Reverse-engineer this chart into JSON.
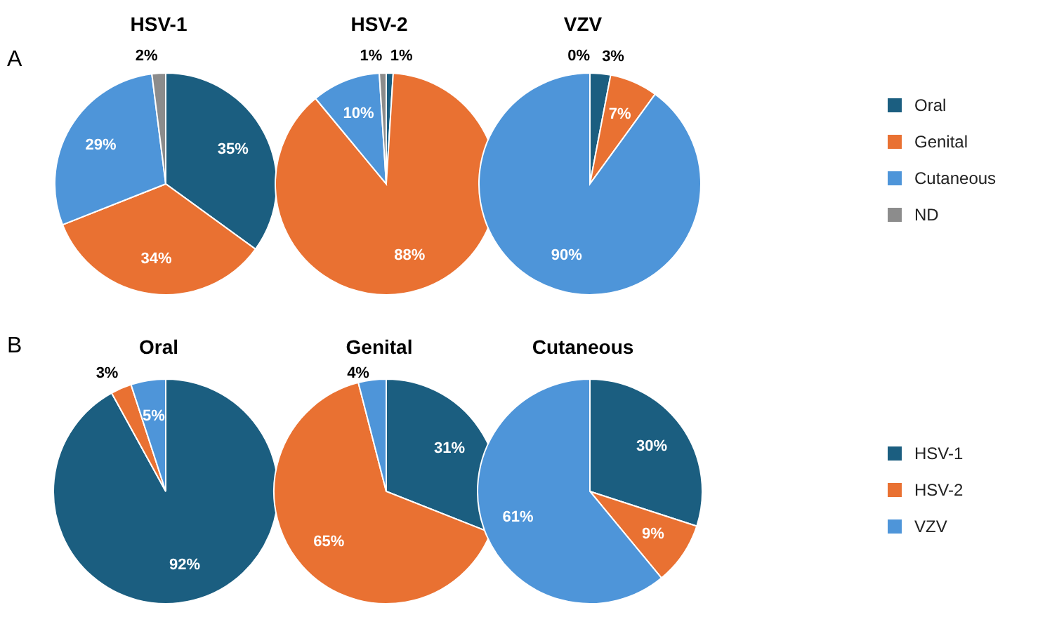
{
  "chart_data": [
    {
      "type": "pie",
      "title": "HSV-1",
      "categories": [
        null,
        null,
        null,
        null
      ],
      "values": [
        35,
        34,
        29,
        2
      ],
      "colors": [
        "#1b5e80",
        "#e97132",
        "#4e95d9",
        "#8c8c8c"
      ],
      "value_labels": [
        "35%",
        "34%",
        "29%",
        "2%"
      ],
      "annotations": [
        "A"
      ]
    },
    {
      "type": "pie",
      "title": "HSV-2",
      "categories": [
        null,
        null,
        null,
        null
      ],
      "values": [
        1,
        88,
        10,
        1
      ],
      "colors": [
        "#1b5e80",
        "#e97132",
        "#4e95d9",
        "#8c8c8c"
      ],
      "value_labels": [
        "1%",
        "88%",
        "10%",
        "1%"
      ]
    },
    {
      "type": "pie",
      "title": "VZV",
      "categories": [
        "Oral",
        "Genital",
        "Cutaneous",
        "ND"
      ],
      "values": [
        3,
        7,
        90,
        0
      ],
      "colors": [
        "#1b5e80",
        "#e97132",
        "#4e95d9",
        "#8c8c8c"
      ],
      "value_labels": [
        "3%",
        "7%",
        "90%",
        "0%"
      ],
      "legend": "right"
    },
    {
      "type": "pie",
      "title": "Oral",
      "categories": [
        null,
        null,
        null
      ],
      "values": [
        92,
        3,
        5
      ],
      "colors": [
        "#1b5e80",
        "#e97132",
        "#4e95d9"
      ],
      "value_labels": [
        "92%",
        "3%",
        "5%"
      ],
      "annotations": [
        "B"
      ]
    },
    {
      "type": "pie",
      "title": "Genital",
      "categories": [
        null,
        null,
        null
      ],
      "values": [
        31,
        65,
        4
      ],
      "colors": [
        "#1b5e80",
        "#e97132",
        "#4e95d9"
      ],
      "value_labels": [
        "31%",
        "65%",
        "4%"
      ]
    },
    {
      "type": "pie",
      "title": "Cutaneous",
      "categories": [
        "HSV-1",
        "HSV-2",
        "VZV"
      ],
      "values": [
        30,
        9,
        61
      ],
      "colors": [
        "#1b5e80",
        "#e97132",
        "#4e95d9"
      ],
      "value_labels": [
        "30%",
        "9%",
        "61%"
      ],
      "legend": "right"
    }
  ]
}
